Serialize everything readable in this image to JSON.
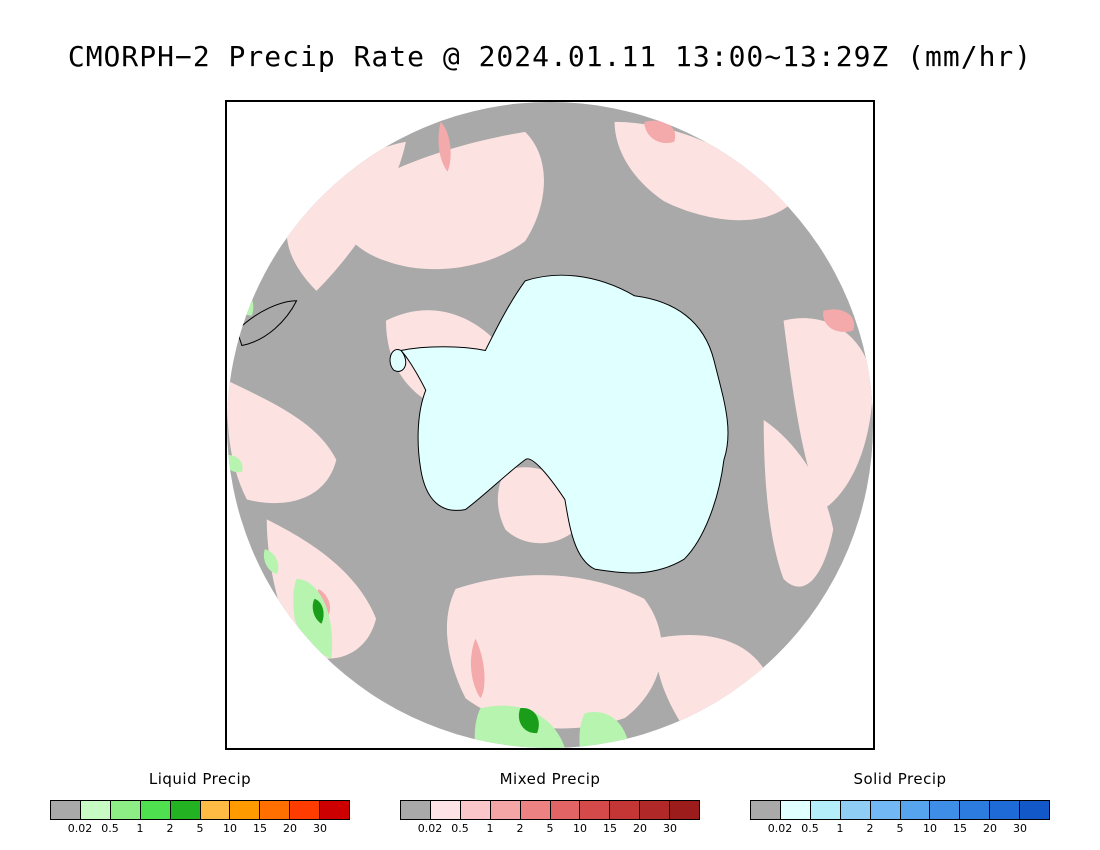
{
  "title": "CMORPH−2 Precip Rate @ 2024.01.11 13:00~13:29Z (mm/hr)",
  "map": {
    "projection": "south-polar-stereographic",
    "colors": {
      "no_precip": "#a9a9a9",
      "mixed_light": "#fde2e2",
      "mixed_moderate": "#f4aaaa",
      "mixed_heavy": "#e07878",
      "liquid_light": "#b6f4b0",
      "liquid_moderate": "#58e058",
      "liquid_heavy": "#1a9e1a",
      "solid_light": "#e0ffff",
      "coastline": "#000000"
    }
  },
  "legends": [
    {
      "title": "Liquid Precip",
      "colors": [
        "#a9a9a9",
        "#c8fac4",
        "#8eee86",
        "#4ee04e",
        "#22b222",
        "#ffbb44",
        "#ff9a00",
        "#ff7000",
        "#ff3c00",
        "#cc0000"
      ],
      "ticks": [
        "0.02",
        "0.5",
        "1",
        "2",
        "5",
        "10",
        "15",
        "20",
        "30"
      ]
    },
    {
      "title": "Mixed Precip",
      "colors": [
        "#a9a9a9",
        "#fde2e6",
        "#fbc6ca",
        "#f4a6a6",
        "#ec8282",
        "#e26464",
        "#d44a4a",
        "#c43636",
        "#b02828",
        "#9c1c1c"
      ],
      "ticks": [
        "0.02",
        "0.5",
        "1",
        "2",
        "5",
        "10",
        "15",
        "20",
        "30"
      ]
    },
    {
      "title": "Solid Precip",
      "colors": [
        "#a9a9a9",
        "#e0ffff",
        "#b4eefa",
        "#90cdf4",
        "#72b8f4",
        "#56a4ee",
        "#3e8ee8",
        "#2c7ce0",
        "#1e6ad6",
        "#1258c8"
      ],
      "ticks": [
        "0.02",
        "0.5",
        "1",
        "2",
        "5",
        "10",
        "15",
        "20",
        "30"
      ]
    }
  ]
}
